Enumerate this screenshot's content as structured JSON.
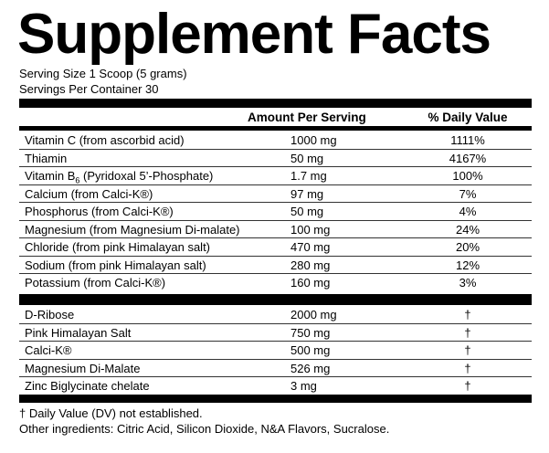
{
  "title": "Supplement Facts",
  "serving_size": "Serving Size 1 Scoop (5 grams)",
  "servings_per_container": "Servings Per Container 30",
  "header": {
    "amount": "Amount Per Serving",
    "dv": "% Daily Value"
  },
  "nutrients": [
    {
      "name": "Vitamin C (from ascorbid acid)",
      "amount": "1000 mg",
      "dv": "1111%"
    },
    {
      "name": "Thiamin",
      "amount": "50 mg",
      "dv": "4167%"
    },
    {
      "name_pre": "Vitamin B",
      "name_sub": "6",
      "name_post": " (Pyridoxal 5’-Phosphate)",
      "amount": "1.7 mg",
      "dv": "100%"
    },
    {
      "name": "Calcium (from Calci-K®)",
      "amount": "97 mg",
      "dv": "7%"
    },
    {
      "name": "Phosphorus (from Calci-K®)",
      "amount": "50 mg",
      "dv": "4%"
    },
    {
      "name": "Magnesium (from Magnesium Di-malate)",
      "amount": "100 mg",
      "dv": "24%"
    },
    {
      "name": "Chloride (from pink Himalayan salt)",
      "amount": "470 mg",
      "dv": "20%"
    },
    {
      "name": "Sodium (from pink Himalayan salt)",
      "amount": "280 mg",
      "dv": "12%"
    },
    {
      "name": "Potassium (from Calci-K®)",
      "amount": "160 mg",
      "dv": "3%"
    }
  ],
  "other": [
    {
      "name": "D-Ribose",
      "amount": "2000 mg",
      "dv": "†"
    },
    {
      "name": "Pink Himalayan Salt",
      "amount": "750 mg",
      "dv": "†"
    },
    {
      "name": "Calci-K®",
      "amount": "500 mg",
      "dv": "†"
    },
    {
      "name": "Magnesium Di-Malate",
      "amount": "526 mg",
      "dv": "†"
    },
    {
      "name": "Zinc Biglycinate chelate",
      "amount": "3 mg",
      "dv": "†"
    }
  ],
  "footnote": "† Daily Value (DV) not established.",
  "other_ingredients": "Other ingredients: Citric Acid, Silicon Dioxide, N&A Flavors, Sucralose."
}
